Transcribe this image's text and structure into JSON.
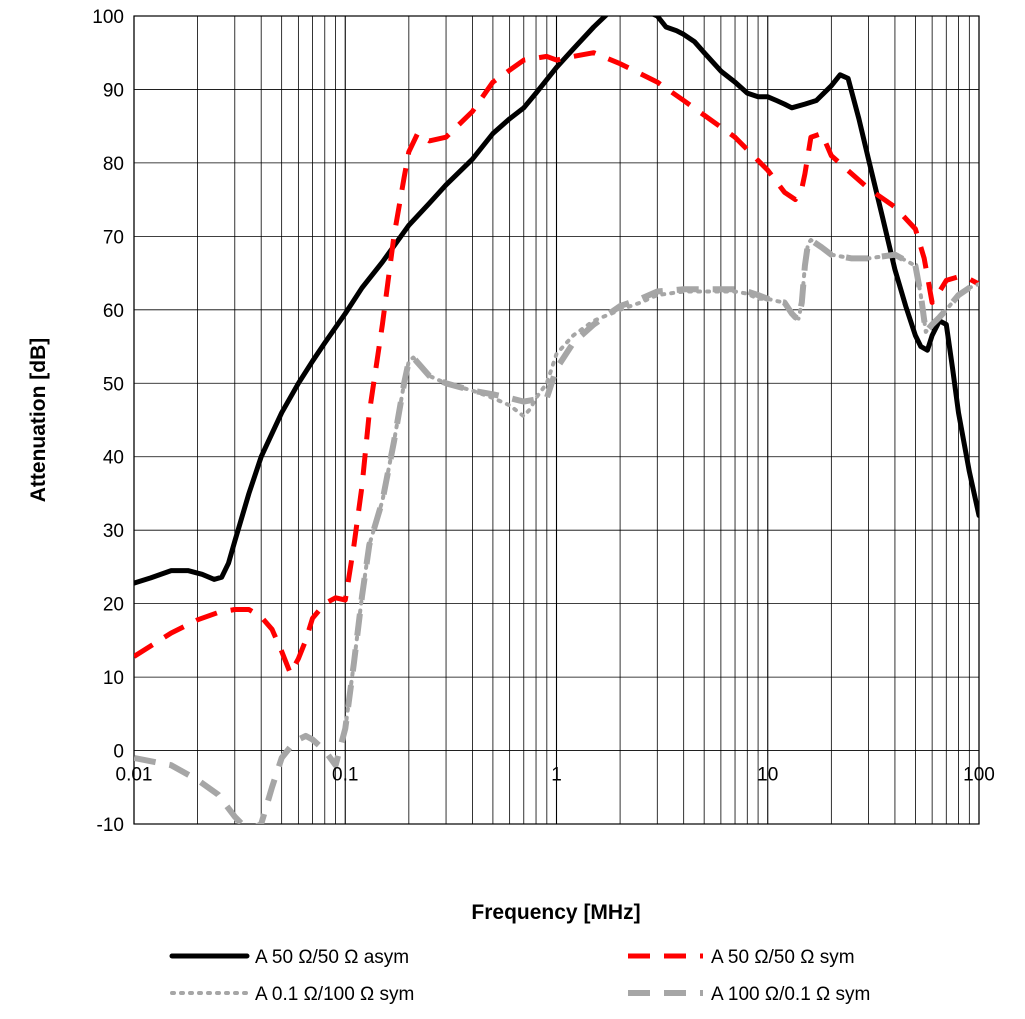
{
  "chart_data": {
    "type": "line",
    "title": "",
    "xlabel": "Frequency [MHz]",
    "ylabel": "Attenuation [dB]",
    "x_scale": "log",
    "xlim": [
      0.01,
      100
    ],
    "ylim": [
      -10,
      100
    ],
    "grid": true,
    "legend_position": "bottom",
    "x_tick_labels": [
      "0.01",
      "0.1",
      "1",
      "10",
      "100"
    ],
    "y_tick_labels": [
      "100",
      "90",
      "80",
      "70",
      "60",
      "50",
      "40",
      "30",
      "20",
      "10",
      "0",
      "-10"
    ],
    "series": [
      {
        "name": "A 50 Ω/50 Ω asym",
        "color": "#000000",
        "style": "solid",
        "x": [
          0.01,
          0.012,
          0.015,
          0.018,
          0.021,
          0.024,
          0.026,
          0.028,
          0.03,
          0.035,
          0.04,
          0.05,
          0.06,
          0.07,
          0.08,
          0.1,
          0.12,
          0.15,
          0.2,
          0.25,
          0.3,
          0.4,
          0.5,
          0.6,
          0.7,
          0.8,
          1.0,
          1.2,
          1.5,
          1.7,
          1.85,
          2.0,
          2.5,
          3.0,
          3.3,
          3.7,
          4.0,
          4.5,
          5.0,
          6.0,
          7.0,
          8.0,
          9.0,
          10.0,
          11.0,
          12.0,
          13.0,
          15.0,
          17.0,
          20.0,
          22.0,
          24.0,
          27.0,
          30.0,
          35.0,
          40.0,
          45.0,
          50.0,
          53.0,
          57.0,
          60.0,
          65.0,
          70.0,
          75.0,
          80.0,
          90.0,
          100.0
        ],
        "y": [
          22.8,
          23.5,
          24.5,
          24.5,
          24.0,
          23.3,
          23.6,
          25.5,
          28.5,
          35,
          40,
          46,
          50,
          53,
          55.5,
          59.5,
          63,
          66.5,
          71.5,
          74.5,
          77,
          80.5,
          84,
          86,
          87.5,
          89.5,
          93.0,
          95.5,
          98.5,
          100,
          101,
          101,
          101,
          100,
          98.5,
          98,
          97.5,
          96.5,
          95,
          92.5,
          91,
          89.5,
          89,
          89,
          88.5,
          88,
          87.5,
          88,
          88.5,
          90.5,
          92,
          91.5,
          86,
          80.5,
          72.5,
          65.5,
          60.5,
          56.5,
          55,
          54.5,
          56.5,
          58.5,
          58,
          52,
          46,
          38,
          32
        ]
      },
      {
        "name": "A 50 Ω/50 Ω sym",
        "color": "#ff0000",
        "style": "dashed",
        "x": [
          0.01,
          0.015,
          0.02,
          0.025,
          0.03,
          0.035,
          0.04,
          0.045,
          0.05,
          0.055,
          0.06,
          0.065,
          0.07,
          0.08,
          0.09,
          0.1,
          0.11,
          0.12,
          0.13,
          0.15,
          0.17,
          0.19,
          0.2,
          0.22,
          0.25,
          0.3,
          0.4,
          0.5,
          0.7,
          0.9,
          1.0,
          1.2,
          1.5,
          2.0,
          3.0,
          4.0,
          5.0,
          7.0,
          10.0,
          12.0,
          13.5,
          14.5,
          15.0,
          16.0,
          18.0,
          20.0,
          25.0,
          30.0,
          40.0,
          50.0,
          55.0,
          60.0,
          65.0,
          70.0,
          80.0,
          90.0,
          100.0
        ],
        "y": [
          12.8,
          16,
          17.8,
          18.8,
          19.2,
          19.2,
          18.2,
          16.5,
          13.5,
          10.5,
          12.5,
          15,
          18,
          20,
          20.8,
          20.5,
          28,
          36,
          46,
          58,
          70,
          78,
          81.5,
          84,
          83,
          83.5,
          87,
          91,
          94,
          94.5,
          94,
          94.5,
          95,
          93.5,
          91,
          88.5,
          86.5,
          83.5,
          79,
          76,
          75,
          76.5,
          78.5,
          83.5,
          84,
          81,
          78.5,
          76.5,
          74,
          71,
          67,
          61,
          62.5,
          64,
          64.5,
          64.2,
          63.5
        ]
      },
      {
        "name": "A 0.1 Ω/100 Ω sym",
        "color": "#a6a6a6",
        "style": "dotted",
        "x": [
          0.1,
          0.11,
          0.12,
          0.13,
          0.15,
          0.17,
          0.19,
          0.2,
          0.21,
          0.25,
          0.3,
          0.4,
          0.5,
          0.6,
          0.7,
          0.75,
          0.8,
          0.9,
          1.0,
          1.2,
          1.5,
          2.0,
          2.5,
          3.0,
          4.0,
          5.0,
          6.0,
          7.0,
          8.0,
          9.0,
          10.0,
          11.0,
          12.0,
          13.0,
          13.5,
          14.0,
          14.5,
          15.0,
          15.5,
          16.0,
          18.0,
          20.0,
          25.0,
          30.0,
          40.0,
          50.0,
          53.0,
          56.0,
          60.0,
          65.0,
          70.0,
          80.0,
          90.0,
          100.0
        ],
        "y": [
          3,
          12,
          21,
          28,
          34,
          42,
          50,
          53,
          53.5,
          51,
          50,
          49,
          48,
          47,
          45.5,
          46.5,
          48,
          50,
          54,
          56.5,
          58.5,
          60,
          61,
          62,
          62.5,
          62.5,
          62.5,
          62.5,
          62.2,
          61.5,
          61.5,
          61.2,
          61,
          59.5,
          59,
          58.8,
          61,
          66,
          69,
          69.5,
          68.5,
          67.5,
          67,
          67,
          67.5,
          66,
          62,
          57,
          58,
          59,
          60,
          62,
          63,
          63.5
        ]
      },
      {
        "name": "A 100 Ω/0.1 Ω sym",
        "color": "#a6a6a6",
        "style": "dashed",
        "x": [
          0.01,
          0.015,
          0.02,
          0.025,
          0.03,
          0.035,
          0.04,
          0.045,
          0.05,
          0.055,
          0.06,
          0.065,
          0.07,
          0.08,
          0.09,
          0.1,
          0.11,
          0.12,
          0.13,
          0.15,
          0.17,
          0.19,
          0.2,
          0.21,
          0.25,
          0.3,
          0.4,
          0.5,
          0.6,
          0.7,
          0.8,
          0.9,
          1.0,
          1.2,
          1.5,
          2.0,
          2.5,
          3.0,
          4.0,
          5.0,
          6.0,
          7.0,
          8.0,
          9.0,
          10.0,
          11.0,
          12.0,
          13.0,
          13.5,
          14.0,
          14.5,
          15.0,
          15.5,
          16.0,
          18.0,
          20.0,
          25.0,
          30.0,
          40.0,
          50.0,
          53.0,
          56.0,
          60.0,
          65.0,
          70.0,
          80.0,
          90.0,
          100.0
        ],
        "y": [
          -1,
          -2,
          -4,
          -6,
          -9,
          -11,
          -10,
          -5,
          -1,
          0.5,
          1.5,
          2,
          1.5,
          0,
          -2,
          3,
          12,
          21,
          28,
          34,
          42,
          50,
          53,
          53.5,
          51,
          50,
          49,
          48.5,
          48,
          47.5,
          47.8,
          48,
          52,
          55.5,
          58,
          60.5,
          61.5,
          62.5,
          62.8,
          62.8,
          62.8,
          62.8,
          62.5,
          62,
          61.5,
          61.2,
          61,
          59.5,
          59,
          58.8,
          61,
          66,
          69,
          69.5,
          68.5,
          67.5,
          67,
          67,
          67.5,
          66,
          62,
          57,
          58,
          59,
          60,
          62,
          63,
          63.5
        ]
      }
    ]
  }
}
